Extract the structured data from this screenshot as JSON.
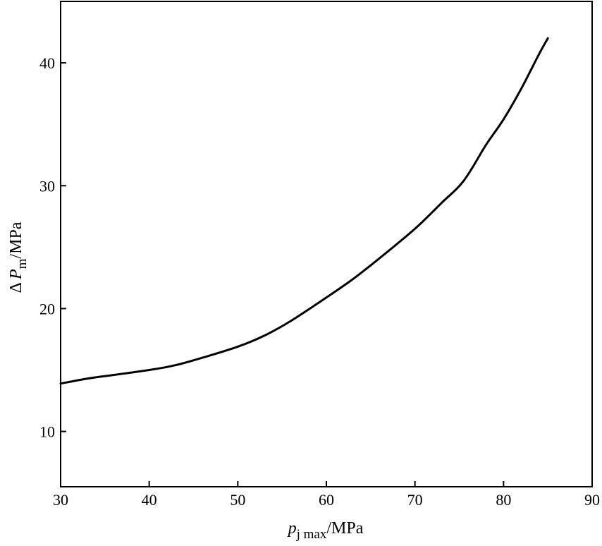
{
  "chart_data": {
    "type": "line",
    "title": "",
    "xlabel": {
      "symbol": "p",
      "subscript": "j max",
      "unit": "/MPa"
    },
    "ylabel": {
      "prefix": "Δ",
      "symbol": "P",
      "subscript": "m",
      "unit": "/MPa"
    },
    "xlim": [
      30,
      90
    ],
    "ylim": [
      5.5,
      45
    ],
    "xticks": [
      "30",
      "40",
      "50",
      "60",
      "70",
      "80",
      "90"
    ],
    "yticks": [
      "10",
      "20",
      "30",
      "40"
    ],
    "grid": false,
    "legend": "none",
    "line_color": "#000000",
    "series": [
      {
        "x": [
          30,
          33,
          36,
          40,
          43,
          46,
          50,
          53,
          56,
          60,
          63,
          66,
          70,
          73,
          75.5,
          78,
          80,
          82,
          84,
          85
        ],
        "y": [
          13.9,
          14.3,
          14.6,
          15.0,
          15.4,
          16.0,
          16.9,
          17.8,
          19.0,
          20.9,
          22.4,
          24.1,
          26.5,
          28.6,
          30.4,
          33.3,
          35.4,
          37.9,
          40.7,
          42.0
        ]
      }
    ]
  }
}
